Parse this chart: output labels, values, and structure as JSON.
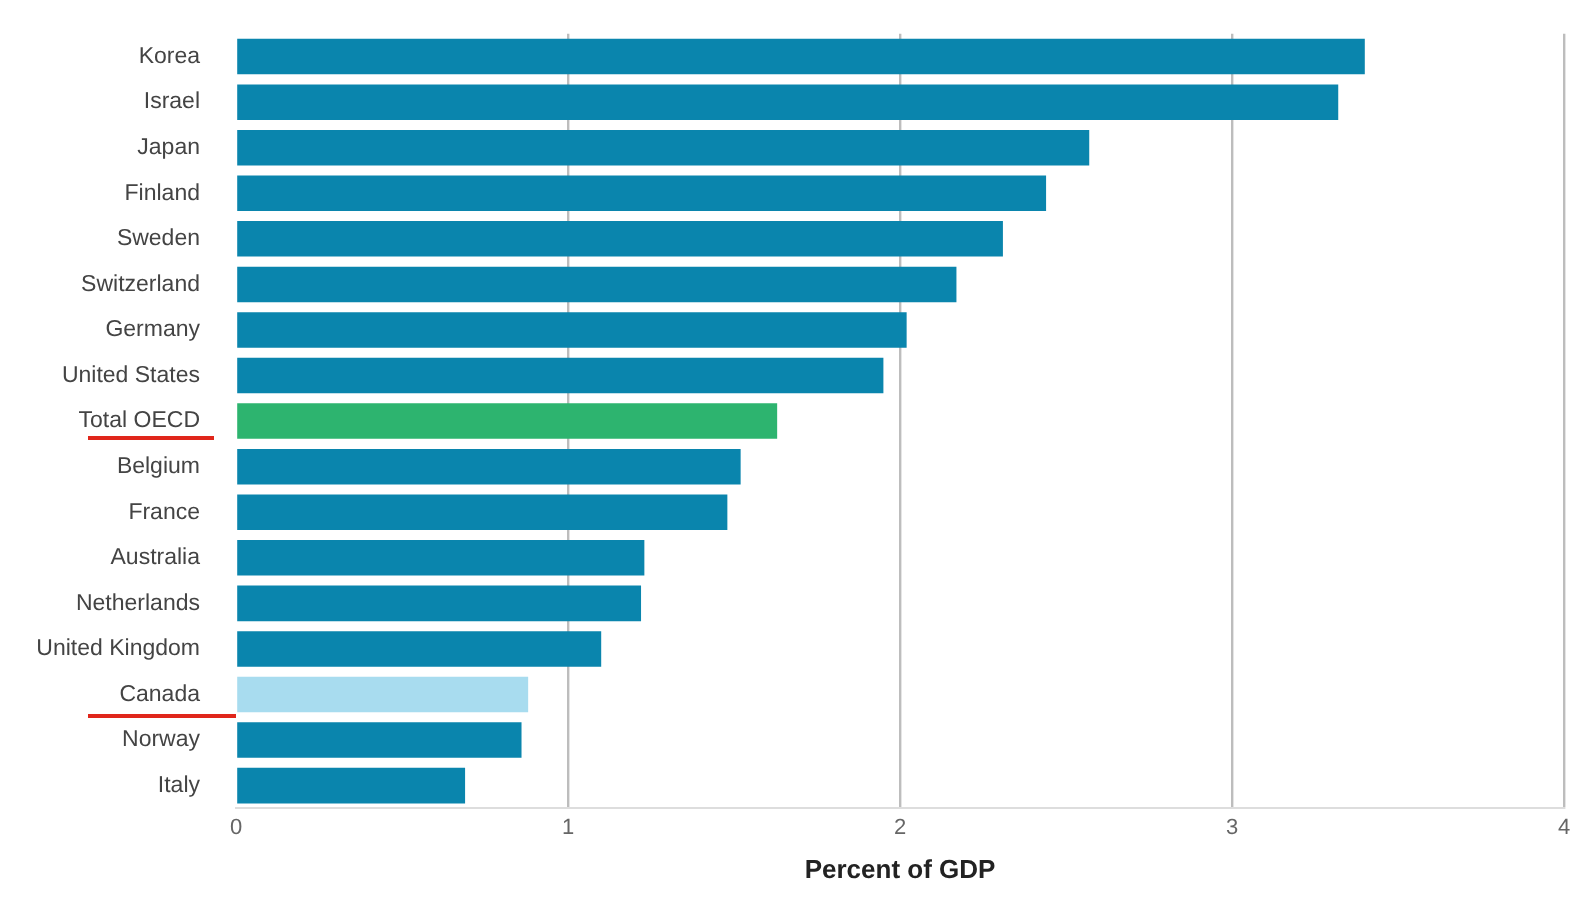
{
  "chart_data": {
    "type": "bar",
    "orientation": "horizontal",
    "xlabel": "Percent of GDP",
    "categories": [
      "Korea",
      "Israel",
      "Japan",
      "Finland",
      "Sweden",
      "Switzerland",
      "Germany",
      "United States",
      "Total OECD",
      "Belgium",
      "France",
      "Australia",
      "Netherlands",
      "United Kingdom",
      "Canada",
      "Norway",
      "Italy"
    ],
    "values": [
      3.4,
      3.32,
      2.57,
      2.44,
      2.31,
      2.17,
      2.02,
      1.95,
      1.63,
      1.52,
      1.48,
      1.23,
      1.22,
      1.1,
      0.88,
      0.86,
      0.69
    ],
    "colors": [
      "#0a85ad",
      "#0a85ad",
      "#0a85ad",
      "#0a85ad",
      "#0a85ad",
      "#0a85ad",
      "#0a85ad",
      "#0a85ad",
      "#2db46f",
      "#0a85ad",
      "#0a85ad",
      "#0a85ad",
      "#0a85ad",
      "#0a85ad",
      "#a8dcef",
      "#0a85ad",
      "#0a85ad"
    ],
    "xlim": [
      0,
      4
    ],
    "xticks": [
      0,
      1,
      2,
      3,
      4
    ],
    "grid": "x",
    "legend": false
  }
}
